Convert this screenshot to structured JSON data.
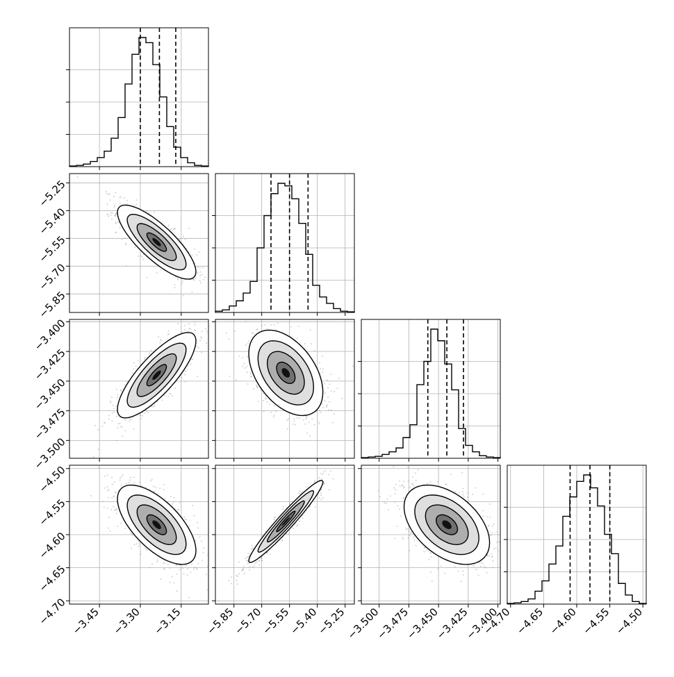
{
  "chart_data": {
    "type": "corner",
    "grid": true,
    "colors": {
      "ink": "#000000",
      "grid": "#b0b0b0",
      "points": "#9a9a9a"
    },
    "params": [
      {
        "range": [
          -3.56,
          -3.05
        ],
        "ticks": [
          -3.45,
          -3.3,
          -3.15
        ],
        "tick_labels": [
          "−3.45",
          "−3.30",
          "−3.15"
        ],
        "quantiles": [
          -3.3,
          -3.23,
          -3.17
        ],
        "hist": [
          0.5,
          1,
          2,
          4,
          7,
          12,
          22,
          38,
          64,
          87,
          100,
          96,
          79,
          54,
          31,
          15,
          7,
          3,
          1,
          0.5
        ]
      },
      {
        "range": [
          -5.95,
          -5.2
        ],
        "ticks": [
          -5.85,
          -5.7,
          -5.55,
          -5.4,
          -5.25
        ],
        "tick_labels": [
          "−5.85",
          "−5.70",
          "−5.55",
          "−5.40",
          "−5.25"
        ],
        "quantiles": [
          -5.65,
          -5.55,
          -5.45
        ],
        "hist": [
          1,
          2,
          5,
          9,
          15,
          24,
          50,
          75,
          92,
          100,
          98,
          88,
          69,
          45,
          21,
          12,
          7,
          3,
          1,
          0.5
        ]
      },
      {
        "range": [
          -3.515,
          -3.398
        ],
        "ticks": [
          -3.5,
          -3.475,
          -3.45,
          -3.425,
          -3.4
        ],
        "tick_labels": [
          "−3.500",
          "−3.475",
          "−3.450",
          "−3.425",
          "−3.400"
        ],
        "quantiles": [
          -3.459,
          -3.443,
          -3.429
        ],
        "hist": [
          0.5,
          1,
          1.5,
          3,
          5,
          8,
          16,
          26,
          57,
          75,
          100,
          91,
          73,
          53,
          23,
          10,
          5,
          2,
          1,
          0.5
        ]
      },
      {
        "range": [
          -4.705,
          -4.495
        ],
        "ticks": [
          -4.7,
          -4.65,
          -4.6,
          -4.55,
          -4.5
        ],
        "tick_labels": [
          "−4.70",
          "−4.65",
          "−4.60",
          "−4.55",
          "−4.50"
        ],
        "quantiles": [
          -4.61,
          -4.58,
          -4.55
        ],
        "hist": [
          0.5,
          1,
          2,
          4,
          10,
          18,
          31,
          45,
          68,
          83,
          95,
          100,
          90,
          76,
          54,
          39,
          16,
          7,
          2,
          0.5
        ]
      }
    ],
    "pairs": [
      {
        "row": 1,
        "col": 0,
        "mean": [
          -3.24,
          -5.57
        ],
        "sd": [
          0.072,
          0.1
        ],
        "corr": -0.8
      },
      {
        "row": 2,
        "col": 0,
        "mean": [
          -3.24,
          -3.445
        ],
        "sd": [
          0.072,
          0.018
        ],
        "corr": 0.8
      },
      {
        "row": 2,
        "col": 1,
        "mean": [
          -5.57,
          -3.443
        ],
        "sd": [
          0.1,
          0.018
        ],
        "corr": -0.45
      },
      {
        "row": 3,
        "col": 0,
        "mean": [
          -3.24,
          -4.585
        ],
        "sd": [
          0.072,
          0.03
        ],
        "corr": -0.65
      },
      {
        "row": 3,
        "col": 1,
        "mean": [
          -5.57,
          -4.58
        ],
        "sd": [
          0.1,
          0.031
        ],
        "corr": 0.96
      },
      {
        "row": 3,
        "col": 2,
        "mean": [
          -3.443,
          -4.585
        ],
        "sd": [
          0.018,
          0.03
        ],
        "corr": -0.45
      }
    ]
  }
}
